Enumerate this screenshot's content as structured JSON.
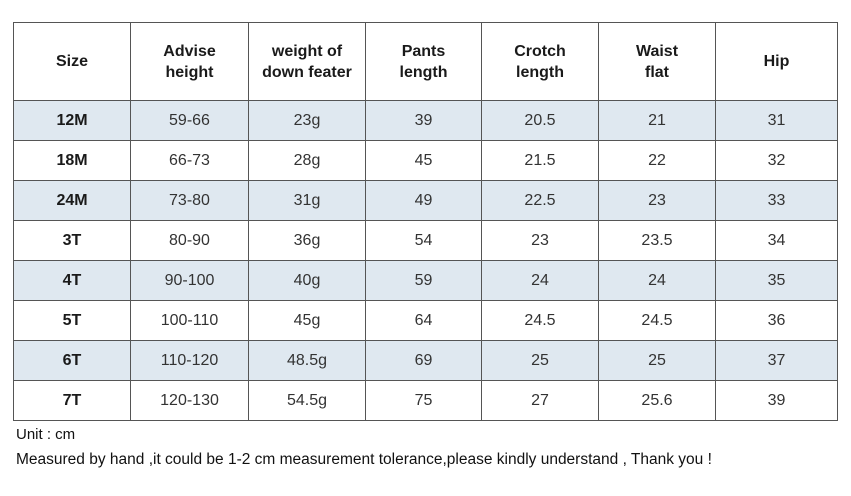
{
  "table": {
    "columns": [
      {
        "lines": [
          "Size"
        ]
      },
      {
        "lines": [
          "Advise",
          "height"
        ]
      },
      {
        "lines": [
          "weight of",
          "down feater"
        ]
      },
      {
        "lines": [
          "Pants",
          "length"
        ]
      },
      {
        "lines": [
          "Crotch",
          "length"
        ]
      },
      {
        "lines": [
          "Waist",
          "flat"
        ]
      },
      {
        "lines": [
          "Hip"
        ]
      }
    ],
    "rows": [
      {
        "size": "12M",
        "height": "59-66",
        "weight": "23g",
        "pants": "39",
        "crotch": "20.5",
        "waist": "21",
        "hip": "31"
      },
      {
        "size": "18M",
        "height": "66-73",
        "weight": "28g",
        "pants": "45",
        "crotch": "21.5",
        "waist": "22",
        "hip": "32"
      },
      {
        "size": "24M",
        "height": "73-80",
        "weight": "31g",
        "pants": "49",
        "crotch": "22.5",
        "waist": "23",
        "hip": "33"
      },
      {
        "size": "3T",
        "height": "80-90",
        "weight": "36g",
        "pants": "54",
        "crotch": "23",
        "waist": "23.5",
        "hip": "34"
      },
      {
        "size": "4T",
        "height": "90-100",
        "weight": "40g",
        "pants": "59",
        "crotch": "24",
        "waist": "24",
        "hip": "35"
      },
      {
        "size": "5T",
        "height": "100-110",
        "weight": "45g",
        "pants": "64",
        "crotch": "24.5",
        "waist": "24.5",
        "hip": "36"
      },
      {
        "size": "6T",
        "height": "110-120",
        "weight": "48.5g",
        "pants": "69",
        "crotch": "25",
        "waist": "25",
        "hip": "37"
      },
      {
        "size": "7T",
        "height": "120-130",
        "weight": "54.5g",
        "pants": "75",
        "crotch": "27",
        "waist": "25.6",
        "hip": "39"
      }
    ],
    "shaded_row_color": "#dfe8f0",
    "border_color": "#555555"
  },
  "notes": {
    "unit": "Unit : cm",
    "measurement": "Measured by hand ,it could be 1-2 cm measurement tolerance,please kindly understand , Thank you !"
  }
}
